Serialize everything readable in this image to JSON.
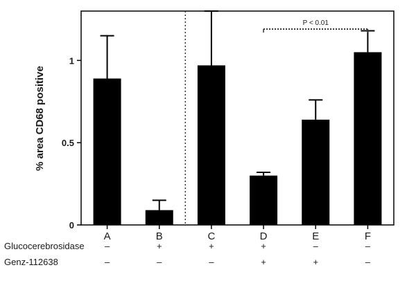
{
  "chart_data": {
    "type": "bar",
    "categories": [
      "A",
      "B",
      "C",
      "D",
      "E",
      "F"
    ],
    "values": [
      0.89,
      0.09,
      0.97,
      0.3,
      0.64,
      1.05
    ],
    "errors": [
      0.26,
      0.06,
      0.33,
      0.02,
      0.12,
      0.13
    ],
    "title": "",
    "xlabel": "",
    "ylabel": "% area CD68 positive",
    "ylim": [
      0,
      1.3
    ],
    "yticks": [
      {
        "value": 0,
        "label": "0"
      },
      {
        "value": 0.5,
        "label": "0.5"
      },
      {
        "value": 1,
        "label": "1"
      }
    ],
    "bar_color": "#000000",
    "grid": false,
    "separator_after_category": "B",
    "annotation": {
      "text": "P < 0.01",
      "from": "D",
      "to": "F"
    },
    "treatments": [
      {
        "name": "Glucocerebrosidase",
        "marks": [
          "–",
          "+",
          "+",
          "+",
          "–",
          "–"
        ]
      },
      {
        "name": "Genz-112638",
        "marks": [
          "–",
          "–",
          "–",
          "+",
          "+",
          "–"
        ]
      }
    ]
  }
}
